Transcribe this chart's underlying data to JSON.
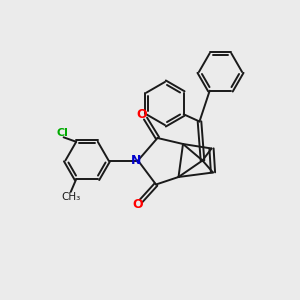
{
  "bg_color": "#ebebeb",
  "bond_color": "#1a1a1a",
  "atom_colors": {
    "O": "#ff0000",
    "N": "#0000cc",
    "Cl": "#00aa00"
  },
  "lw": 1.4
}
